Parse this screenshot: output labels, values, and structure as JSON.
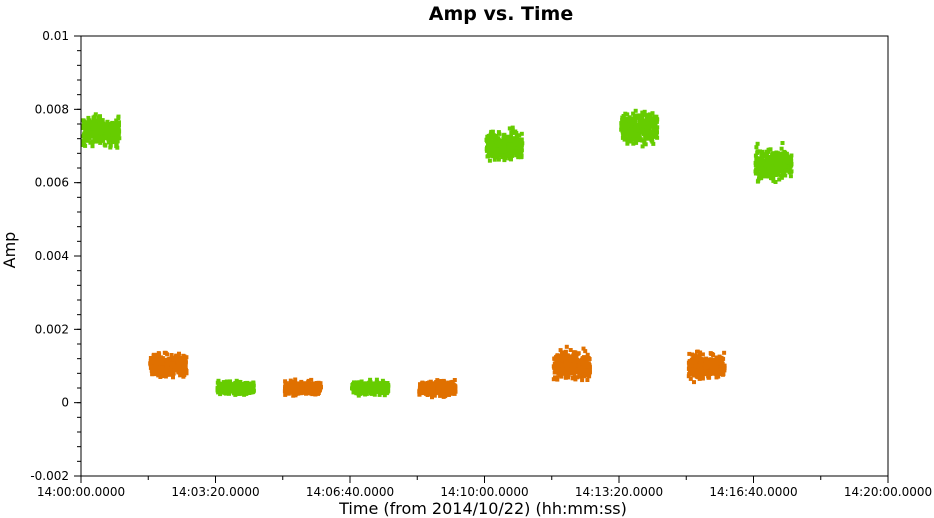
{
  "chart_data": {
    "type": "scatter",
    "title": "Amp vs. Time",
    "xlabel": "Time (from 2014/10/22) (hh:mm:ss)",
    "ylabel": "Amp",
    "xlim": [
      "14:00:00",
      "14:20:00"
    ],
    "ylim": [
      -0.002,
      0.01
    ],
    "x_tick_labels": [
      "14:00:00.0000",
      "14:03:20.0000",
      "14:06:40.0000",
      "14:10:00.0000",
      "14:13:20.0000",
      "14:16:40.0000",
      "14:20:00.0000"
    ],
    "y_tick_labels": [
      "-0.002",
      "0",
      "0.002",
      "0.004",
      "0.006",
      "0.008",
      "0.01"
    ],
    "grid": false,
    "colors": {
      "green": "#66cc00",
      "orange": "#e07000"
    },
    "clusters": [
      {
        "color": "green",
        "t_start": "14:00:00",
        "t_end": "14:01:00",
        "amp_center": 0.0074,
        "amp_spread": 0.0011
      },
      {
        "color": "orange",
        "t_start": "14:01:40",
        "t_end": "14:02:40",
        "amp_center": 0.001,
        "amp_spread": 0.0009
      },
      {
        "color": "green",
        "t_start": "14:03:20",
        "t_end": "14:04:20",
        "amp_center": 0.0004,
        "amp_spread": 0.0005
      },
      {
        "color": "orange",
        "t_start": "14:05:00",
        "t_end": "14:06:00",
        "amp_center": 0.0004,
        "amp_spread": 0.0005
      },
      {
        "color": "green",
        "t_start": "14:06:40",
        "t_end": "14:07:40",
        "amp_center": 0.0004,
        "amp_spread": 0.0005
      },
      {
        "color": "orange",
        "t_start": "14:08:20",
        "t_end": "14:09:20",
        "amp_center": 0.0004,
        "amp_spread": 0.0006
      },
      {
        "color": "green",
        "t_start": "14:10:00",
        "t_end": "14:11:00",
        "amp_center": 0.007,
        "amp_spread": 0.0011
      },
      {
        "color": "orange",
        "t_start": "14:11:40",
        "t_end": "14:12:40",
        "amp_center": 0.001,
        "amp_spread": 0.0011
      },
      {
        "color": "green",
        "t_start": "14:13:20",
        "t_end": "14:14:20",
        "amp_center": 0.0075,
        "amp_spread": 0.0012
      },
      {
        "color": "orange",
        "t_start": "14:15:00",
        "t_end": "14:16:00",
        "amp_center": 0.001,
        "amp_spread": 0.001
      },
      {
        "color": "green",
        "t_start": "14:16:40",
        "t_end": "14:17:40",
        "amp_center": 0.0065,
        "amp_spread": 0.0012
      }
    ]
  }
}
